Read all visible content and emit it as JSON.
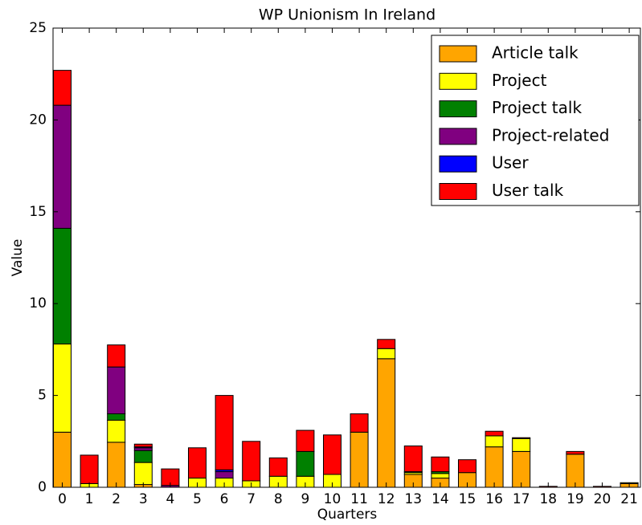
{
  "chart_data": {
    "type": "stacked_bar",
    "title": "WP Unionism In Ireland",
    "xlabel": "Quarters",
    "ylabel": "Value",
    "categories": [
      0,
      1,
      2,
      3,
      4,
      5,
      6,
      7,
      8,
      9,
      10,
      11,
      12,
      13,
      14,
      15,
      16,
      17,
      18,
      19,
      20,
      21
    ],
    "series": [
      {
        "name": "Article talk",
        "color": "#ffa500",
        "values": [
          3.0,
          0,
          2.45,
          0.15,
          0,
          0,
          0,
          0,
          0,
          0,
          0,
          3.0,
          7.0,
          0.7,
          0.5,
          0.8,
          2.2,
          1.95,
          0,
          1.8,
          0,
          0.2
        ]
      },
      {
        "name": "Project",
        "color": "#ffff00",
        "values": [
          4.8,
          0.2,
          1.2,
          1.2,
          0,
          0.5,
          0.5,
          0.35,
          0.6,
          0.6,
          0.7,
          0,
          0.55,
          0.1,
          0.25,
          0,
          0.6,
          0.7,
          0,
          0,
          0,
          0.05
        ]
      },
      {
        "name": "Project talk",
        "color": "#008000",
        "values": [
          6.3,
          0,
          0.35,
          0.65,
          0,
          0,
          0,
          0,
          0,
          1.35,
          0,
          0,
          0,
          0.05,
          0.1,
          0,
          0,
          0,
          0,
          0,
          0,
          0
        ]
      },
      {
        "name": "Project-related",
        "color": "#800080",
        "values": [
          6.7,
          0,
          2.55,
          0.15,
          0.1,
          0,
          0.35,
          0,
          0,
          0,
          0,
          0,
          0,
          0,
          0,
          0,
          0,
          0,
          0,
          0,
          0,
          0
        ]
      },
      {
        "name": "User",
        "color": "#0000ff",
        "values": [
          0,
          0,
          0,
          0.05,
          0,
          0,
          0.1,
          0,
          0,
          0,
          0,
          0,
          0,
          0,
          0,
          0,
          0,
          0,
          0,
          0,
          0,
          0
        ]
      },
      {
        "name": "User talk",
        "color": "#ff0000",
        "values": [
          1.9,
          1.55,
          1.2,
          0.15,
          0.9,
          1.65,
          4.05,
          2.15,
          1.0,
          1.15,
          2.15,
          1.0,
          0.5,
          1.4,
          0.8,
          0.7,
          0.25,
          0.05,
          0.05,
          0.15,
          0.05,
          0
        ]
      }
    ],
    "ylim": [
      0,
      25
    ],
    "yticks": [
      0,
      5,
      10,
      15,
      20,
      25
    ],
    "legend": "upper right"
  }
}
